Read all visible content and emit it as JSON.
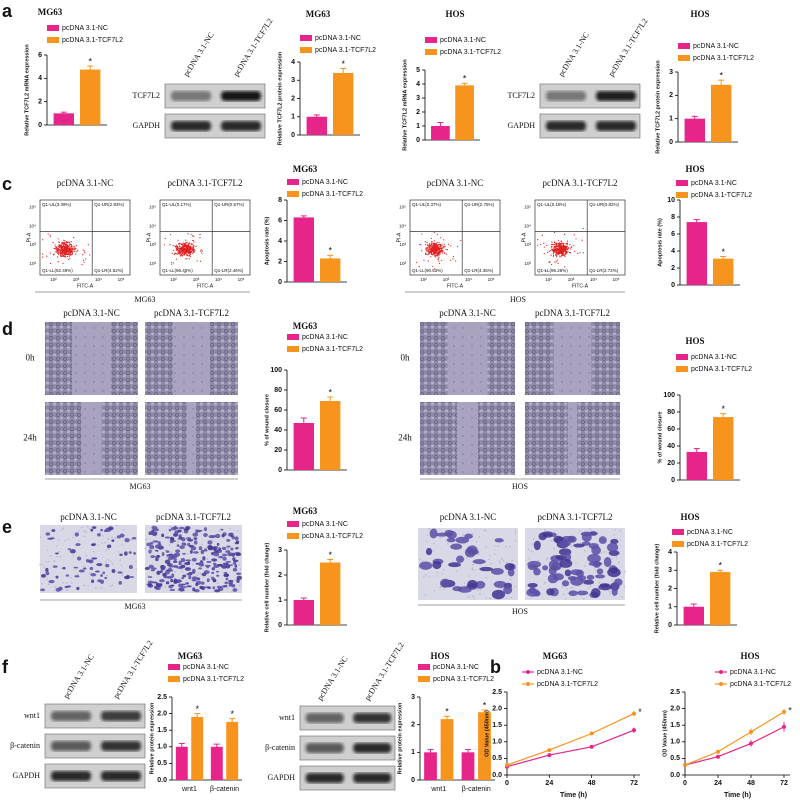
{
  "panel_letters": [
    "a",
    "c",
    "d",
    "e",
    "f",
    "b"
  ],
  "chart_data": [
    {
      "type": "bar",
      "title": "MG63",
      "y_label": "Relative TCF7L2 mRNA expression",
      "categories": [
        null
      ],
      "series": [
        {
          "name": "pcDNA 3.1-NC",
          "color": "#e6248a",
          "values": [
            1.0
          ],
          "errors": [
            0.1
          ]
        },
        {
          "name": "pcDNA 3.1-TCF7L2",
          "color": "#f7941d",
          "values": [
            4.75
          ],
          "errors": [
            0.3
          ],
          "annotations": [
            "*"
          ]
        }
      ],
      "ylim": [
        0,
        6
      ],
      "yticks": [
        0,
        2,
        4,
        6
      ]
    },
    {
      "type": "bar",
      "title": "MG63",
      "y_label": "Relative TCF7L2 protein expression",
      "categories": [
        null
      ],
      "series": [
        {
          "name": "pcDNA 3.1-NC",
          "color": "#e6248a",
          "values": [
            1.0
          ],
          "errors": [
            0.1
          ]
        },
        {
          "name": "pcDNA 3.1-TCF7L2",
          "color": "#f7941d",
          "values": [
            3.4
          ],
          "errors": [
            0.25
          ],
          "annotations": [
            "*"
          ]
        }
      ],
      "ylim": [
        0,
        4
      ],
      "yticks": [
        0,
        1,
        2,
        3,
        4
      ]
    },
    {
      "type": "bar",
      "title": "HOS",
      "y_label": "Relative TCF7L2 mRNA expression",
      "categories": [
        null
      ],
      "series": [
        {
          "name": "pcDNA 3.1-NC",
          "color": "#e6248a",
          "values": [
            1.0
          ],
          "errors": [
            0.25
          ]
        },
        {
          "name": "pcDNA 3.1-TCF7L2",
          "color": "#f7941d",
          "values": [
            3.9
          ],
          "errors": [
            0.15
          ],
          "annotations": [
            "*"
          ]
        }
      ],
      "ylim": [
        0,
        5
      ],
      "yticks": [
        0,
        1,
        2,
        3,
        4,
        5
      ]
    },
    {
      "type": "bar",
      "title": "HOS",
      "y_label": "Relative TCF7L2 protein expression",
      "categories": [
        null
      ],
      "series": [
        {
          "name": "pcDNA 3.1-NC",
          "color": "#e6248a",
          "values": [
            1.0
          ],
          "errors": [
            0.1
          ]
        },
        {
          "name": "pcDNA 3.1-TCF7L2",
          "color": "#f7941d",
          "values": [
            2.45
          ],
          "errors": [
            0.2
          ],
          "annotations": [
            "*"
          ]
        }
      ],
      "ylim": [
        0,
        3
      ],
      "yticks": [
        0,
        1,
        2,
        3
      ]
    },
    {
      "type": "bar",
      "title": "MG63",
      "y_label": "Apoptosis rate (%)",
      "categories": [
        null
      ],
      "series": [
        {
          "name": "pcDNA 3.1-NC",
          "color": "#e6248a",
          "values": [
            6.3
          ],
          "errors": [
            0.15
          ]
        },
        {
          "name": "pcDNA 3.1-TCF7L2",
          "color": "#f7941d",
          "values": [
            2.3
          ],
          "errors": [
            0.3
          ],
          "annotations": [
            "*"
          ]
        }
      ],
      "ylim": [
        0,
        8
      ],
      "yticks": [
        0,
        2,
        4,
        6,
        8
      ]
    },
    {
      "type": "bar",
      "title": "HOS",
      "y_label": "Apoptosis rate (%)",
      "categories": [
        null
      ],
      "series": [
        {
          "name": "pcDNA 3.1-NC",
          "color": "#e6248a",
          "values": [
            7.4
          ],
          "errors": [
            0.3
          ]
        },
        {
          "name": "pcDNA 3.1-TCF7L2",
          "color": "#f7941d",
          "values": [
            3.1
          ],
          "errors": [
            0.25
          ],
          "annotations": [
            "*"
          ]
        }
      ],
      "ylim": [
        0,
        10
      ],
      "yticks": [
        0,
        2,
        4,
        6,
        8,
        10
      ]
    },
    {
      "type": "bar",
      "title": "MG63",
      "y_label": "% of wound closure",
      "categories": [
        null
      ],
      "series": [
        {
          "name": "pcDNA 3.1-NC",
          "color": "#e6248a",
          "values": [
            47
          ],
          "errors": [
            5
          ]
        },
        {
          "name": "pcDNA 3.1-TCF7L2",
          "color": "#f7941d",
          "values": [
            69
          ],
          "errors": [
            4
          ],
          "annotations": [
            "*"
          ]
        }
      ],
      "ylim": [
        0,
        100
      ],
      "yticks": [
        0,
        20,
        40,
        60,
        80,
        100
      ]
    },
    {
      "type": "bar",
      "title": "HOS",
      "y_label": "% of wound closure",
      "categories": [
        null
      ],
      "series": [
        {
          "name": "pcDNA 3.1-NC",
          "color": "#e6248a",
          "values": [
            33
          ],
          "errors": [
            4
          ]
        },
        {
          "name": "pcDNA 3.1-TCF7L2",
          "color": "#f7941d",
          "values": [
            74
          ],
          "errors": [
            4
          ],
          "annotations": [
            "*"
          ]
        }
      ],
      "ylim": [
        0,
        100
      ],
      "yticks": [
        0,
        20,
        40,
        60,
        80,
        100
      ]
    },
    {
      "type": "bar",
      "title": "MG63",
      "y_label": "Relative cell number (fold change)",
      "categories": [
        null
      ],
      "series": [
        {
          "name": "pcDNA 3.1-NC",
          "color": "#e6248a",
          "values": [
            1.0
          ],
          "errors": [
            0.08
          ]
        },
        {
          "name": "pcDNA 3.1-TCF7L2",
          "color": "#f7941d",
          "values": [
            2.5
          ],
          "errors": [
            0.12
          ],
          "annotations": [
            "*"
          ]
        }
      ],
      "ylim": [
        0,
        3
      ],
      "yticks": [
        0,
        1,
        2,
        3
      ]
    },
    {
      "type": "bar",
      "title": "HOS",
      "y_label": "Relative cell number (fold change)",
      "categories": [
        null
      ],
      "series": [
        {
          "name": "pcDNA 3.1-NC",
          "color": "#e6248a",
          "values": [
            1.0
          ],
          "errors": [
            0.15
          ]
        },
        {
          "name": "pcDNA 3.1-TCF7L2",
          "color": "#f7941d",
          "values": [
            2.9
          ],
          "errors": [
            0.1
          ],
          "annotations": [
            "*"
          ]
        }
      ],
      "ylim": [
        0,
        4
      ],
      "yticks": [
        0,
        1,
        2,
        3,
        4
      ]
    },
    {
      "type": "bar",
      "title": "MG63",
      "y_label": "Relative protein expression",
      "categories": [
        "wnt1",
        "β-catenin"
      ],
      "series": [
        {
          "name": "pcDNA 3.1-NC",
          "color": "#e6248a",
          "values": [
            1.0,
            1.0
          ],
          "errors": [
            0.1,
            0.08
          ]
        },
        {
          "name": "pcDNA 3.1-TCF7L2",
          "color": "#f7941d",
          "values": [
            1.9,
            1.75
          ],
          "errors": [
            0.1,
            0.1
          ],
          "annotations": [
            "*",
            "*"
          ]
        }
      ],
      "ylim": [
        0,
        2.5
      ],
      "yticks": [
        {
          "value": 0,
          "label": "0.0"
        },
        {
          "value": 0.5,
          "label": "0.5"
        },
        {
          "value": 1,
          "label": "1.0"
        },
        {
          "value": 1.5,
          "label": "1.5"
        },
        {
          "value": 2,
          "label": "2.0"
        },
        {
          "value": 2.5,
          "label": "2.5"
        }
      ]
    },
    {
      "type": "bar",
      "title": "HOS",
      "y_label": "Relative protein expression",
      "categories": [
        "wnt1",
        "β-catenin"
      ],
      "series": [
        {
          "name": "pcDNA 3.1-NC",
          "color": "#e6248a",
          "values": [
            1.0,
            1.0
          ],
          "errors": [
            0.1,
            0.1
          ]
        },
        {
          "name": "pcDNA 3.1-TCF7L2",
          "color": "#f7941d",
          "values": [
            2.2,
            2.45
          ],
          "errors": [
            0.1,
            0.08
          ],
          "annotations": [
            "*",
            "*"
          ]
        }
      ],
      "ylim": [
        0,
        3
      ],
      "yticks": [
        0,
        1,
        2,
        3
      ]
    },
    {
      "type": "line",
      "title": "MG63",
      "x_label": "Time (h)",
      "y_label": "OD Value (450nm)",
      "x": [
        0,
        24,
        48,
        72
      ],
      "xlim": [
        0,
        72
      ],
      "xticks": [
        0,
        24,
        48,
        72
      ],
      "series": [
        {
          "name": "pcDNA 3.1-NC",
          "color": "#e6248a",
          "values": [
            0.25,
            0.6,
            0.85,
            1.35
          ],
          "errors": [
            0.03,
            0.05,
            0.05,
            0.08
          ]
        },
        {
          "name": "pcDNA 3.1-TCF7L2",
          "color": "#f7941d",
          "values": [
            0.3,
            0.75,
            1.25,
            1.85
          ],
          "errors": [
            0.03,
            0.05,
            0.06,
            0.08
          ],
          "annotations": [
            null,
            null,
            null,
            "*"
          ]
        }
      ],
      "ylim": [
        0,
        2.5
      ],
      "yticks": [
        {
          "value": 0,
          "label": "0.0"
        },
        {
          "value": 0.5,
          "label": "0.5"
        },
        {
          "value": 1,
          "label": "1.0"
        },
        {
          "value": 1.5,
          "label": "1.5"
        },
        {
          "value": 2,
          "label": "2.0"
        },
        {
          "value": 2.5,
          "label": "2.5"
        }
      ]
    },
    {
      "type": "line",
      "title": "HOS",
      "x_label": "Time (h)",
      "y_label": "OD Value (450nm)",
      "x": [
        0,
        24,
        48,
        72
      ],
      "xlim": [
        0,
        72
      ],
      "xticks": [
        0,
        24,
        48,
        72
      ],
      "series": [
        {
          "name": "pcDNA 3.1-NC",
          "color": "#e6248a",
          "values": [
            0.3,
            0.55,
            0.95,
            1.45
          ],
          "errors": [
            0.03,
            0.05,
            0.1,
            0.15
          ]
        },
        {
          "name": "pcDNA 3.1-TCF7L2",
          "color": "#f7941d",
          "values": [
            0.3,
            0.7,
            1.3,
            1.9
          ],
          "errors": [
            0.03,
            0.05,
            0.1,
            0.08
          ],
          "annotations": [
            null,
            null,
            null,
            "*"
          ]
        }
      ],
      "ylim": [
        0,
        2.5
      ],
      "yticks": [
        {
          "value": 0,
          "label": "0.0"
        },
        {
          "value": 0.5,
          "label": "0.5"
        },
        {
          "value": 1,
          "label": "1.0"
        },
        {
          "value": 1.5,
          "label": "1.5"
        },
        {
          "value": 2,
          "label": "2.0"
        },
        {
          "value": 2.5,
          "label": "2.5"
        }
      ]
    }
  ],
  "blots": [
    {
      "columns": [
        "pcDNA 3.1-NC",
        "pcDNA 3.1-TCF7L2"
      ],
      "rows": [
        "TCF7L2",
        "GAPDH"
      ]
    },
    {
      "columns": [
        "pcDNA 3.1-NC",
        "pcDNA 3.1-TCF7L2"
      ],
      "rows": [
        "TCF7L2",
        "GAPDH"
      ]
    },
    {
      "columns": [
        "pcDNA 3.1-NC",
        "pcDNA 3.1-TCF7L2"
      ],
      "rows": [
        "wnt1",
        "β-catenin",
        "GAPDH"
      ]
    },
    {
      "columns": [
        "pcDNA 3.1-NC",
        "pcDNA 3.1-TCF7L2"
      ],
      "rows": [
        "wnt1",
        "β-catenin",
        "GAPDH"
      ]
    }
  ],
  "flow_cytometry": [
    {
      "cell_line": "MG63",
      "x_label": "FITC-A",
      "y_label": "PI-A",
      "ticks": [
        "10²",
        "10³",
        "10⁴",
        "10⁵"
      ],
      "plots": [
        {
          "title": "pcDNA 3.1-NC",
          "quadrants": [
            "Q1-UL(3.39%)",
            "Q1-UR(2.93%)",
            "Q1-LL(92.49%)",
            "Q1-LR(4.52%)"
          ]
        },
        {
          "title": "pcDNA 3.1-TCF7L2",
          "quadrants": [
            "Q1-UL(0.17%)",
            "Q1-UR(0.57%)",
            "Q1-LL(96.40%)",
            "Q1-LR(2.46%)"
          ]
        }
      ]
    },
    {
      "cell_line": "HOS",
      "x_label": "FITC-A",
      "y_label": "PI-A",
      "ticks": [
        "10²",
        "10³",
        "10⁴",
        "10⁵"
      ],
      "plots": [
        {
          "title": "pcDNA 3.1-NC",
          "quadrants": [
            "Q1-UL(0.37%)",
            "Q1-UR(2.75%)",
            "Q1-LL(90.53%)",
            "Q1-LR(4.35%)"
          ]
        },
        {
          "title": "pcDNA 3.1-TCF7L2",
          "quadrants": [
            "Q1-UL(0.18%)",
            "Q1-UR(0.82%)",
            "Q1-LL(96.28%)",
            "Q1-LR(2.72%)"
          ]
        }
      ]
    }
  ],
  "wound_healing": [
    {
      "cell_line": "MG63",
      "columns": [
        "pcDNA 3.1-NC",
        "pcDNA 3.1-TCF7L2"
      ],
      "rows": [
        "0h",
        "24h"
      ]
    },
    {
      "cell_line": "HOS",
      "columns": [
        "pcDNA 3.1-NC",
        "pcDNA 3.1-TCF7L2"
      ],
      "rows": [
        "0h",
        "24h"
      ]
    }
  ],
  "transwell": [
    {
      "cell_line": "MG63",
      "columns": [
        "pcDNA 3.1-NC",
        "pcDNA 3.1-TCF7L2"
      ]
    },
    {
      "cell_line": "HOS",
      "columns": [
        "pcDNA 3.1-NC",
        "pcDNA 3.1-TCF7L2"
      ]
    }
  ]
}
